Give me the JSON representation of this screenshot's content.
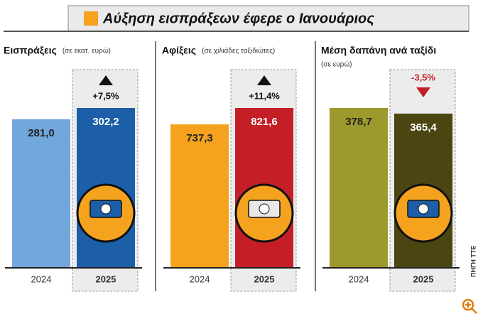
{
  "title": "Αύξηση εισπράξεων έφερε ο Ιανουάριος",
  "source": "ΠΗΓΗ ΤΤΕ",
  "chart_data": [
    {
      "type": "bar",
      "title": "Εισπράξεις",
      "subtitle": "(σε εκατ. ευρώ)",
      "categories": [
        "2024",
        "2025"
      ],
      "values": [
        281.0,
        302.2
      ],
      "value_labels": [
        "281,0",
        "302,2"
      ],
      "colors": [
        "#72a7dc",
        "#1d5ea8"
      ],
      "annotation": "+7,5%"
    },
    {
      "type": "bar",
      "title": "Αφίξεις",
      "subtitle": "(σε χιλιάδες ταξιδιώτες)",
      "categories": [
        "2024",
        "2025"
      ],
      "values": [
        737.3,
        821.6
      ],
      "value_labels": [
        "737,3",
        "821,6"
      ],
      "colors": [
        "#f5a21f",
        "#c41e27"
      ],
      "annotation": "+11,4%"
    },
    {
      "type": "bar",
      "title": "Μέση δαπάνη ανά ταξίδι",
      "subtitle": "(σε ευρώ)",
      "categories": [
        "2024",
        "2025"
      ],
      "values": [
        378.7,
        365.4
      ],
      "value_labels": [
        "378,7",
        "365,4"
      ],
      "colors": [
        "#9c9a2c",
        "#4b4611"
      ],
      "annotation": "-3,5%"
    }
  ]
}
